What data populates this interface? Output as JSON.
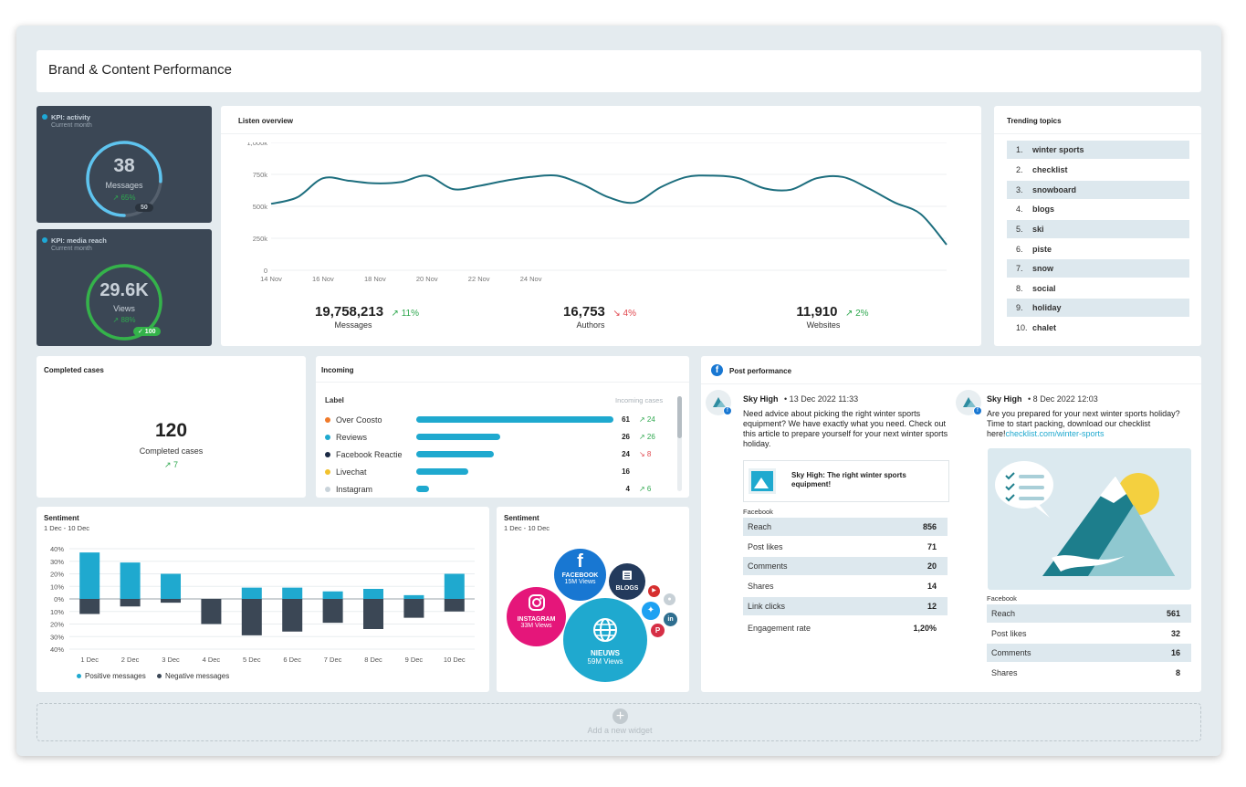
{
  "page_title": "Brand & Content Performance",
  "kpi_activity": {
    "title": "KPI: activity",
    "subtitle": "Current month",
    "value": "38",
    "unit": "Messages",
    "trend": "↗ 65%",
    "target": "50",
    "progress": 0.76,
    "color": "#5ec4ef"
  },
  "kpi_reach": {
    "title": "KPI: media reach",
    "subtitle": "Current month",
    "value": "29.6K",
    "unit": "Views",
    "trend": "↗ 88%",
    "target": "✓ 100",
    "progress": 1.0,
    "color": "#34b34a"
  },
  "listen": {
    "title": "Listen overview",
    "y_ticks": [
      "1,000k",
      "750k",
      "500k",
      "250k",
      "0"
    ],
    "x_ticks": [
      "14 Nov",
      "16 Nov",
      "18 Nov",
      "20 Nov",
      "22 Nov",
      "24 Nov"
    ],
    "stats": [
      {
        "value": "19,758,213",
        "trend": "↗ 11%",
        "label": "Messages",
        "dir": "up"
      },
      {
        "value": "16,753",
        "trend": "↘ 4%",
        "label": "Authors",
        "dir": "down"
      },
      {
        "value": "11,910",
        "trend": "↗ 2%",
        "label": "Websites",
        "dir": "up"
      }
    ]
  },
  "chart_data": [
    {
      "type": "line",
      "title": "Listen overview",
      "ylim": [
        0,
        1000000
      ],
      "y_unit": "k",
      "x": [
        0,
        1,
        2,
        3,
        4,
        5,
        6,
        7,
        8,
        9,
        10,
        11,
        12,
        13,
        14,
        15,
        16,
        17,
        18,
        19,
        20,
        21,
        22,
        23,
        24,
        25,
        26
      ],
      "x_tick_labels": [
        "14 Nov",
        "16 Nov",
        "18 Nov",
        "20 Nov",
        "22 Nov",
        "24 Nov"
      ],
      "series": [
        {
          "values": [
            520000,
            570000,
            720000,
            700000,
            680000,
            690000,
            740000,
            635000,
            660000,
            700000,
            730000,
            740000,
            670000,
            570000,
            530000,
            650000,
            730000,
            740000,
            720000,
            640000,
            630000,
            720000,
            730000,
            640000,
            530000,
            440000,
            200000
          ]
        }
      ],
      "grid": true,
      "color": "#1d6e7e"
    },
    {
      "type": "bar",
      "title": "Sentiment",
      "subtitle": "1 Dec - 10 Dec",
      "categories": [
        "1 Dec",
        "2 Dec",
        "3 Dec",
        "4 Dec",
        "5 Dec",
        "6 Dec",
        "7 Dec",
        "8 Dec",
        "9 Dec",
        "10 Dec"
      ],
      "series": [
        {
          "name": "Positive messages",
          "values": [
            37,
            29,
            20,
            0,
            9,
            9,
            6,
            8,
            3,
            20
          ],
          "color": "#1fa9cf"
        },
        {
          "name": "Negative messages",
          "values": [
            -12,
            -6,
            -3,
            -20,
            -29,
            -26,
            -19,
            -24,
            -15,
            -10
          ],
          "color": "#3b4755"
        }
      ],
      "y_ticks": [
        "40%",
        "30%",
        "20%",
        "10%",
        "0%",
        "10%",
        "20%",
        "30%",
        "40%"
      ],
      "ylim": [
        -40,
        40
      ],
      "legend": "bottom-left",
      "grid": true
    }
  ],
  "trending": {
    "title": "Trending topics",
    "items": [
      {
        "num": "1.",
        "label": "winter sports"
      },
      {
        "num": "2.",
        "label": "checklist"
      },
      {
        "num": "3.",
        "label": "snowboard"
      },
      {
        "num": "4.",
        "label": "blogs"
      },
      {
        "num": "5.",
        "label": "ski"
      },
      {
        "num": "6.",
        "label": "piste"
      },
      {
        "num": "7.",
        "label": "snow"
      },
      {
        "num": "8.",
        "label": "social"
      },
      {
        "num": "9.",
        "label": "holiday"
      },
      {
        "num": "10.",
        "label": "chalet"
      }
    ]
  },
  "completed": {
    "title": "Completed cases",
    "value": "120",
    "label": "Completed cases",
    "trend": "↗ 7"
  },
  "incoming": {
    "title": "Incoming",
    "col_label": "Label",
    "col_cases": "Incoming cases",
    "rows": [
      {
        "label": "Over Coosto",
        "value": 61,
        "num": "61",
        "trend": "↗ 24",
        "dir": "up",
        "color": "#f07a2a"
      },
      {
        "label": "Reviews",
        "value": 26,
        "num": "26",
        "trend": "↗ 26",
        "dir": "up",
        "color": "#1fa9cf"
      },
      {
        "label": "Facebook Reactie",
        "value": 24,
        "num": "24",
        "trend": "↘ 8",
        "dir": "down",
        "color": "#1b2a44"
      },
      {
        "label": "Livechat",
        "value": 16,
        "num": "16",
        "trend": "",
        "dir": "up",
        "color": "#f2c22e"
      },
      {
        "label": "Instagram",
        "value": 4,
        "num": "4",
        "trend": "↗ 6",
        "dir": "up",
        "color": "#c9d3da"
      }
    ]
  },
  "sentiment": {
    "title": "Sentiment",
    "subtitle": "1 Dec - 10 Dec",
    "legend_pos": "Positive messages",
    "legend_neg": "Negative messages"
  },
  "sentiment2": {
    "title": "Sentiment",
    "subtitle": "1 Dec - 10 Dec",
    "bubbles": {
      "facebook": {
        "name": "FACEBOOK",
        "views": "15M Views",
        "color": "#1877d2"
      },
      "blogs": {
        "name": "BLOGS",
        "color": "#233a5c"
      },
      "instagram": {
        "name": "INSTAGRAM",
        "views": "33M Views",
        "color": "#e5167a"
      },
      "nieuws": {
        "name": "NIEUWS",
        "views": "59M Views",
        "color": "#1fa9cf"
      }
    }
  },
  "post_performance": {
    "title": "Post performance",
    "posts": [
      {
        "author": "Sky High",
        "date": "• 13 Dec 2022 11:33",
        "text": "Need advice about picking the right winter sports equipment? We have exactly what you need. Check out this article to prepare yourself for your next winter sports holiday.",
        "link_title": "Sky High: The right winter sports equipment!",
        "platform": "Facebook",
        "stats": [
          {
            "label": "Reach",
            "value": "856"
          },
          {
            "label": "Post likes",
            "value": "71"
          },
          {
            "label": "Comments",
            "value": "20"
          },
          {
            "label": "Shares",
            "value": "14"
          },
          {
            "label": "Link clicks",
            "value": "12"
          },
          {
            "label": "Engagement rate",
            "value": "1,20%"
          }
        ]
      },
      {
        "author": "Sky High",
        "date": "• 8 Dec 2022 12:03",
        "text": "Are you prepared for your next winter sports holiday? Time to start packing, download our checklist here!",
        "link": "checklist.com/winter-sports",
        "platform": "Facebook",
        "stats": [
          {
            "label": "Reach",
            "value": "561"
          },
          {
            "label": "Post likes",
            "value": "32"
          },
          {
            "label": "Comments",
            "value": "16"
          },
          {
            "label": "Shares",
            "value": "8"
          }
        ]
      }
    ]
  },
  "add_widget": "Add a new widget"
}
